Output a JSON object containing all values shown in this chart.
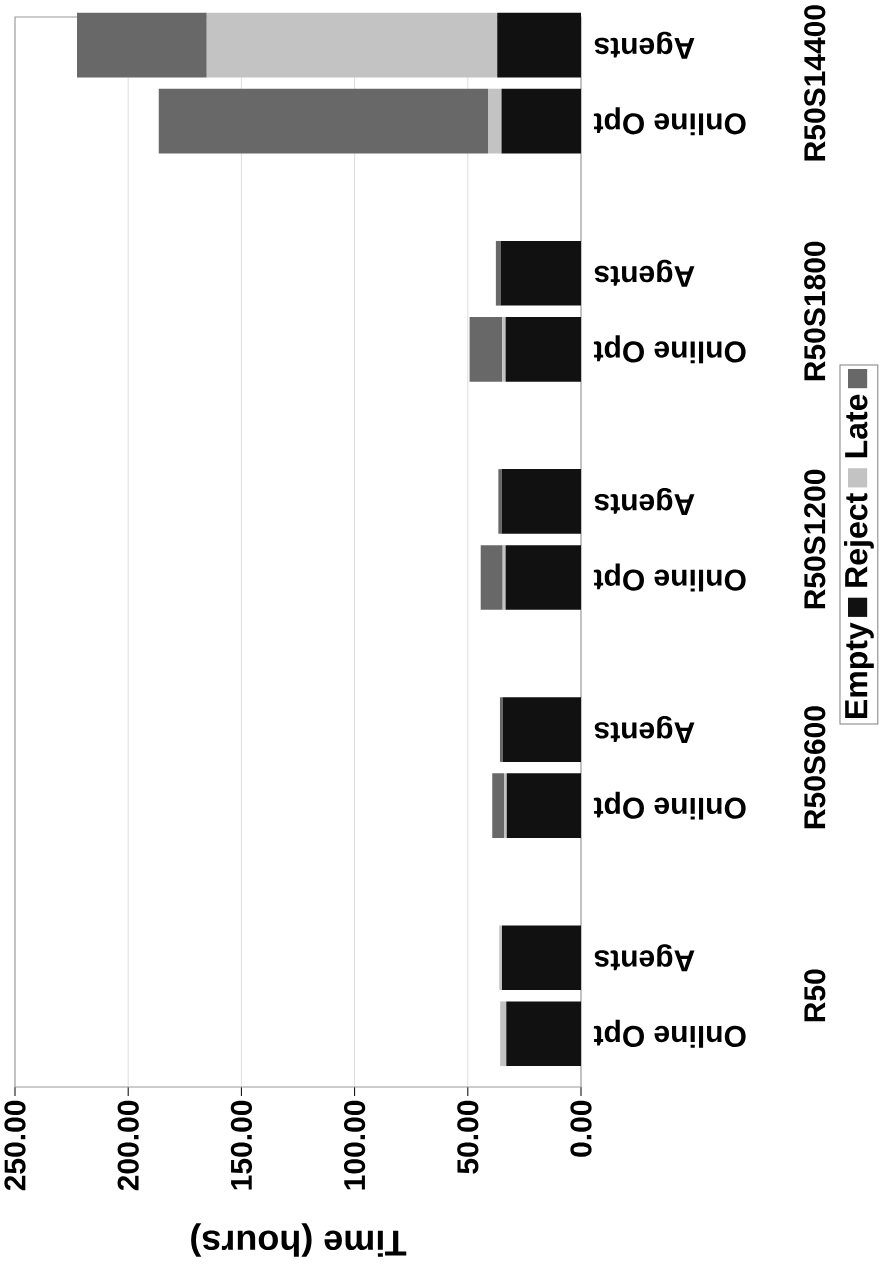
{
  "chart_data": {
    "type": "bar",
    "stacked": true,
    "orientation": "horizontal",
    "xlabel": "Time (hours)",
    "categories": [
      "Agents",
      "Online Opt",
      null,
      "Agents",
      "Online Opt",
      null,
      "Agents",
      "Online Opt",
      null,
      "Agents",
      "Online Opt",
      null,
      "Agents",
      "Online Opt"
    ],
    "series": [
      {
        "name": "Empty",
        "color": "#111111",
        "values": [
          37.0,
          35.1,
          null,
          35.5,
          33.3,
          null,
          35.0,
          33.3,
          null,
          34.6,
          32.8,
          null,
          34.9,
          33.0
        ]
      },
      {
        "name": "Reject",
        "color": "#c3c3c3",
        "values": [
          128.3,
          5.8,
          null,
          0,
          1.5,
          null,
          0,
          1.3,
          null,
          0,
          1.2,
          null,
          1.2,
          2.7
        ]
      },
      {
        "name": "Late",
        "color": "#686868",
        "values": [
          57.3,
          145.6,
          null,
          2.1,
          14.4,
          null,
          1.5,
          9.7,
          null,
          1.2,
          5.2,
          null,
          0,
          0
        ]
      }
    ],
    "xlim": [
      250,
      0
    ],
    "xticks": [
      {
        "value": 250,
        "label": "250.00"
      },
      {
        "value": 200,
        "label": "200.00"
      },
      {
        "value": 150,
        "label": "150.00"
      },
      {
        "value": 100,
        "label": "100.00"
      },
      {
        "value": 50,
        "label": "50.00"
      },
      {
        "value": 0,
        "label": "0.00"
      }
    ],
    "grid": "x",
    "legend": "right",
    "annotations": [
      "R50S14400",
      "R50S1800",
      "R50S1200",
      "R50S600",
      "R50"
    ]
  }
}
